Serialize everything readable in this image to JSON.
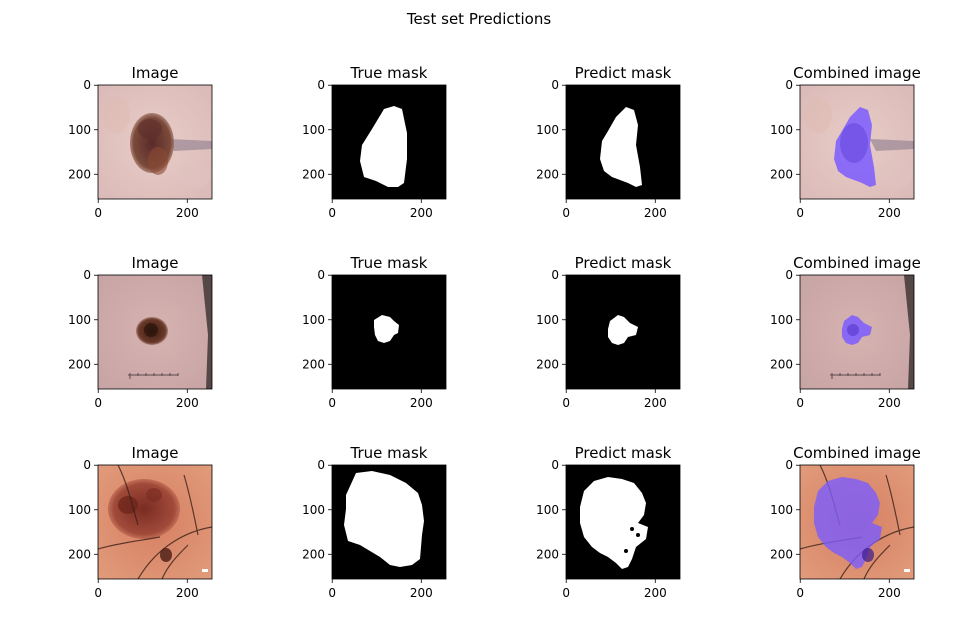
{
  "figure": {
    "suptitle": "Test set Predictions"
  },
  "panel_titles": [
    "Image",
    "True mask",
    "Predict mask",
    "Combined image"
  ],
  "axes": {
    "x_ticks": [
      "0",
      "200"
    ],
    "y_ticks": [
      "0",
      "100",
      "200"
    ]
  },
  "rows": [
    {
      "image_desc": "dermoscopy-lesion-1",
      "panels": [
        "Image",
        "True mask",
        "Predict mask",
        "Combined image"
      ]
    },
    {
      "image_desc": "dermoscopy-lesion-2",
      "panels": [
        "Image",
        "True mask",
        "Predict mask",
        "Combined image"
      ]
    },
    {
      "image_desc": "dermoscopy-lesion-3",
      "panels": [
        "Image",
        "True mask",
        "Predict mask",
        "Combined image"
      ]
    }
  ],
  "colors": {
    "mask_bg": "#000000",
    "mask_fg": "#ffffff",
    "overlay": "#7b5cff",
    "skin1": "#ead2d4",
    "skin2": "#c9a4a4",
    "skin3": "#d98a6a"
  }
}
